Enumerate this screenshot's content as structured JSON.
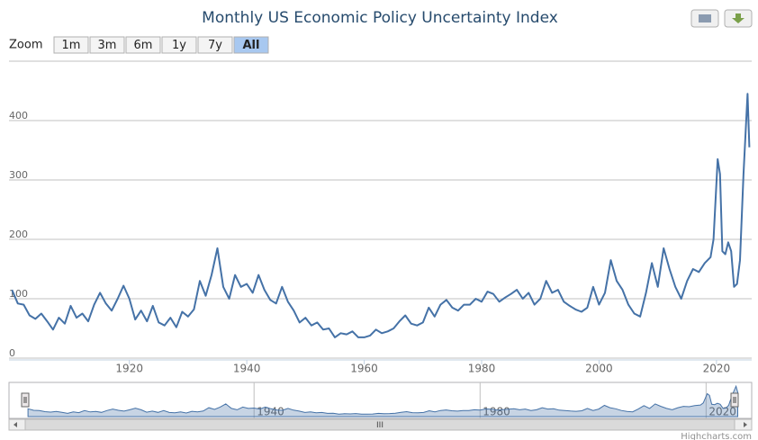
{
  "chart_data": {
    "type": "line",
    "title": "Monthly US Economic Policy Uncertainty Index",
    "color": "#4572a7",
    "xlim": [
      1899.5,
      2026
    ],
    "ylim": [
      0,
      500
    ],
    "xticks": [
      1920,
      1940,
      1960,
      1980,
      2000,
      2020
    ],
    "yticks": [
      0,
      100,
      200,
      300,
      400
    ],
    "grid": true,
    "x": [
      1900,
      1901,
      1902,
      1903,
      1904,
      1905,
      1906,
      1907,
      1908,
      1909,
      1910,
      1911,
      1912,
      1913,
      1914,
      1915,
      1916,
      1917,
      1918,
      1919,
      1920,
      1921,
      1922,
      1923,
      1924,
      1925,
      1926,
      1927,
      1928,
      1929,
      1930,
      1931,
      1932,
      1933,
      1934,
      1935,
      1936,
      1937,
      1938,
      1939,
      1940,
      1941,
      1942,
      1943,
      1944,
      1945,
      1946,
      1947,
      1948,
      1949,
      1950,
      1951,
      1952,
      1953,
      1954,
      1955,
      1956,
      1957,
      1958,
      1959,
      1960,
      1961,
      1962,
      1963,
      1964,
      1965,
      1966,
      1967,
      1968,
      1969,
      1970,
      1971,
      1972,
      1973,
      1974,
      1975,
      1976,
      1977,
      1978,
      1979,
      1980,
      1981,
      1982,
      1983,
      1984,
      1985,
      1986,
      1987,
      1988,
      1989,
      1990,
      1991,
      1992,
      1993,
      1994,
      1995,
      1996,
      1997,
      1998,
      1999,
      2000,
      2001,
      2002,
      2003,
      2004,
      2005,
      2006,
      2007,
      2008,
      2009,
      2010,
      2011,
      2012,
      2013,
      2014,
      2015,
      2016,
      2017,
      2018,
      2019,
      2019.5,
      2020.2,
      2020.6,
      2021,
      2021.5,
      2022,
      2022.5,
      2023,
      2023.5,
      2024,
      2024.6,
      2025.3,
      2025.6
    ],
    "values": [
      115,
      92,
      90,
      72,
      66,
      75,
      62,
      48,
      68,
      58,
      88,
      68,
      75,
      62,
      90,
      110,
      92,
      80,
      100,
      122,
      100,
      65,
      80,
      62,
      88,
      60,
      55,
      68,
      52,
      78,
      70,
      82,
      130,
      105,
      140,
      185,
      120,
      100,
      140,
      120,
      125,
      110,
      140,
      115,
      98,
      92,
      120,
      95,
      80,
      60,
      68,
      55,
      60,
      48,
      50,
      35,
      42,
      40,
      45,
      35,
      35,
      38,
      48,
      42,
      45,
      50,
      62,
      72,
      58,
      55,
      60,
      85,
      70,
      90,
      98,
      85,
      80,
      90,
      90,
      100,
      95,
      112,
      108,
      95,
      102,
      108,
      115,
      100,
      110,
      90,
      100,
      130,
      110,
      115,
      95,
      88,
      82,
      78,
      85,
      120,
      90,
      110,
      165,
      130,
      115,
      90,
      75,
      70,
      110,
      160,
      120,
      185,
      150,
      120,
      100,
      130,
      150,
      145,
      160,
      170,
      200,
      335,
      310,
      180,
      175,
      195,
      180,
      120,
      125,
      165,
      310,
      445,
      355
    ],
    "range_selector": {
      "label": "Zoom",
      "buttons": [
        "1m",
        "3m",
        "6m",
        "1y",
        "7y",
        "All"
      ],
      "selected": 5
    },
    "navigator": {
      "xticks": [
        1940,
        1980,
        2020
      ]
    },
    "scrollbar_label": "III",
    "credits": "Highcharts.com"
  }
}
